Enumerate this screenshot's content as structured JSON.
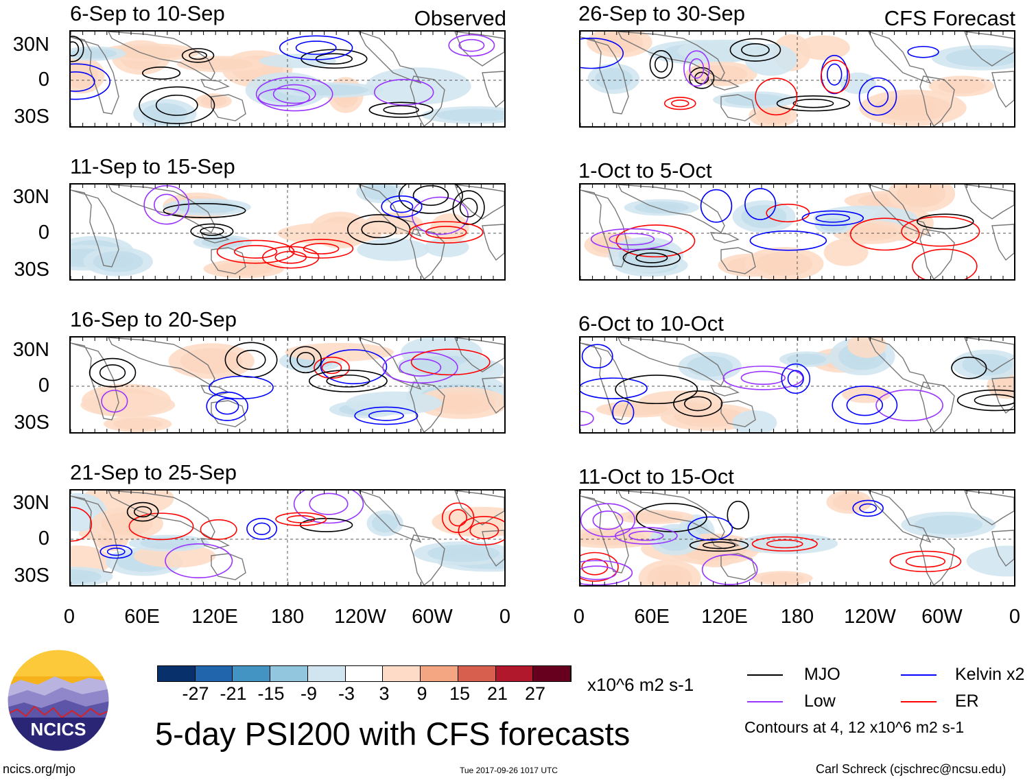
{
  "main_title": "5-day PSI200 with CFS forecasts",
  "column_tags": {
    "observed": "Observed",
    "forecast": "CFS Forecast"
  },
  "panels": [
    {
      "title": "6-Sep to 10-Sep",
      "column": "Observed"
    },
    {
      "title": "11-Sep to 15-Sep",
      "column": "Observed"
    },
    {
      "title": "16-Sep to 20-Sep",
      "column": "Observed"
    },
    {
      "title": "21-Sep to 25-Sep",
      "column": "Observed"
    },
    {
      "title": "26-Sep to 30-Sep",
      "column": "CFS Forecast"
    },
    {
      "title": "1-Oct to 5-Oct",
      "column": "CFS Forecast"
    },
    {
      "title": "6-Oct to 10-Oct",
      "column": "CFS Forecast"
    },
    {
      "title": "11-Oct to 15-Oct",
      "column": "CFS Forecast"
    }
  ],
  "lat_labels": [
    "30N",
    "0",
    "30S"
  ],
  "lon_labels": [
    "0",
    "60E",
    "120E",
    "180",
    "120W",
    "60W",
    "0"
  ],
  "colorbar": {
    "labels": [
      "-27",
      "-21",
      "-15",
      "-9",
      "-3",
      "3",
      "9",
      "15",
      "21",
      "27"
    ],
    "colors": [
      "#08306b",
      "#2166ac",
      "#4393c3",
      "#92c5de",
      "#d1e5f0",
      "#ffffff",
      "#fddbc7",
      "#f4a582",
      "#d6604d",
      "#b2182b",
      "#67001f"
    ],
    "units": "x10^6 m2 s-1"
  },
  "legend": {
    "items": [
      {
        "label": "MJO",
        "color": "#000000"
      },
      {
        "label": "Kelvin x2",
        "color": "#0000ff"
      },
      {
        "label": "Low",
        "color": "#9933ff"
      },
      {
        "label": "ER",
        "color": "#ff0000"
      }
    ],
    "note": "Contours at 4, 12 x10^6 m2 s-1"
  },
  "logo_text": "NCICS",
  "footer": {
    "url": "ncics.org/mjo",
    "timestamp": "Tue 2017-09-26 1017 UTC",
    "credit": "Carl Schreck (cjschrec@ncsu.edu)"
  }
}
